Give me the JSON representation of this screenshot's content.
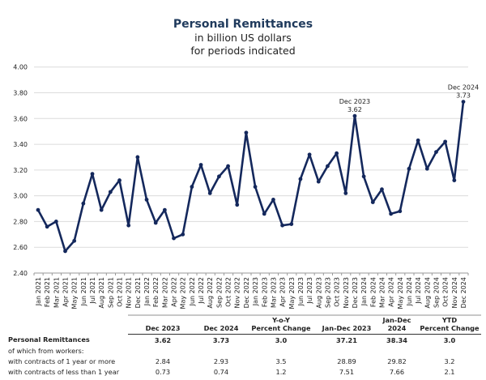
{
  "header": {
    "title": "Personal Remittances",
    "subtitle_line1": "in billion US dollars",
    "subtitle_line2": "for periods indicated"
  },
  "colors": {
    "line": "#14285c",
    "title": "#1f3a5c",
    "grid": "#dcdcdc"
  },
  "chart_data": {
    "type": "line",
    "title": "Personal Remittances",
    "subtitle": "in billion US dollars for periods indicated",
    "xlabel": "",
    "ylabel": "",
    "ylim": [
      2.4,
      4.0
    ],
    "yticks": [
      "2.40",
      "2.60",
      "2.80",
      "3.00",
      "3.20",
      "3.40",
      "3.60",
      "3.80",
      "4.00"
    ],
    "grid": true,
    "legend": "none",
    "x": [
      "Jan 2021",
      "Feb 2021",
      "Mar 2021",
      "Apr 2021",
      "May 2021",
      "Jun 2021",
      "Jul 2021",
      "Aug 2021",
      "Sep 2021",
      "Oct 2021",
      "Nov 2021",
      "Dec 2021",
      "Jan 2022",
      "Feb 2022",
      "Mar 2022",
      "Apr 2022",
      "May 2022",
      "Jun 2022",
      "Jul 2022",
      "Aug 2022",
      "Sep 2022",
      "Oct 2022",
      "Nov 2022",
      "Dec 2022",
      "Jan 2023",
      "Feb 2023",
      "Mar 2023",
      "Apr 2023",
      "May 2023",
      "Jun 2023",
      "Jul 2023",
      "Aug 2023",
      "Sep 2023",
      "Oct 2023",
      "Nov 2023",
      "Dec 2023",
      "Jan 2024",
      "Feb 2024",
      "Mar 2024",
      "Apr 2024",
      "May 2024",
      "Jun 2024",
      "Jul 2024",
      "Aug 2024",
      "Sep 2024",
      "Oct 2024",
      "Nov 2024",
      "Dec 2024"
    ],
    "series": [
      {
        "name": "Personal Remittances",
        "values": [
          2.89,
          2.76,
          2.8,
          2.57,
          2.65,
          2.94,
          3.17,
          2.89,
          3.03,
          3.12,
          2.77,
          3.3,
          2.97,
          2.79,
          2.89,
          2.67,
          2.7,
          3.07,
          3.24,
          3.02,
          3.15,
          3.23,
          2.93,
          3.49,
          3.07,
          2.86,
          2.97,
          2.77,
          2.78,
          3.13,
          3.32,
          3.11,
          3.23,
          3.33,
          3.02,
          3.62,
          3.15,
          2.95,
          3.05,
          2.86,
          2.88,
          3.21,
          3.43,
          3.21,
          3.34,
          3.42,
          3.12,
          3.73
        ]
      }
    ],
    "annotations": [
      {
        "x": "Dec 2023",
        "label_line1": "Dec 2023",
        "label_line2": "3.62"
      },
      {
        "x": "Dec 2024",
        "label_line1": "Dec 2024",
        "label_line2": "3.73"
      }
    ]
  },
  "table": {
    "headers": [
      {
        "line1": "",
        "line2": "Dec 2023"
      },
      {
        "line1": "",
        "line2": "Dec 2024"
      },
      {
        "line1": "Y-o-Y",
        "line2": "Percent Change"
      },
      {
        "line1": "",
        "line2": "Jan-Dec 2023"
      },
      {
        "line1": "",
        "line2": "Jan-Dec 2024"
      },
      {
        "line1": "YTD",
        "line2": "Percent Change"
      }
    ],
    "rows": [
      {
        "label": "Personal Remittances",
        "bold": true,
        "values": [
          "3.62",
          "3.73",
          "3.0",
          "37.21",
          "38.34",
          "3.0"
        ]
      },
      {
        "label": "of which from workers:",
        "bold": false,
        "values": [
          "",
          "",
          "",
          "",
          "",
          ""
        ]
      },
      {
        "label": "with contracts of 1 year or more",
        "bold": false,
        "values": [
          "2.84",
          "2.93",
          "3.5",
          "28.89",
          "29.82",
          "3.2"
        ]
      },
      {
        "label": "with contracts of less than 1 year",
        "bold": false,
        "values": [
          "0.73",
          "0.74",
          "1.2",
          "7.51",
          "7.66",
          "2.1"
        ]
      }
    ]
  }
}
